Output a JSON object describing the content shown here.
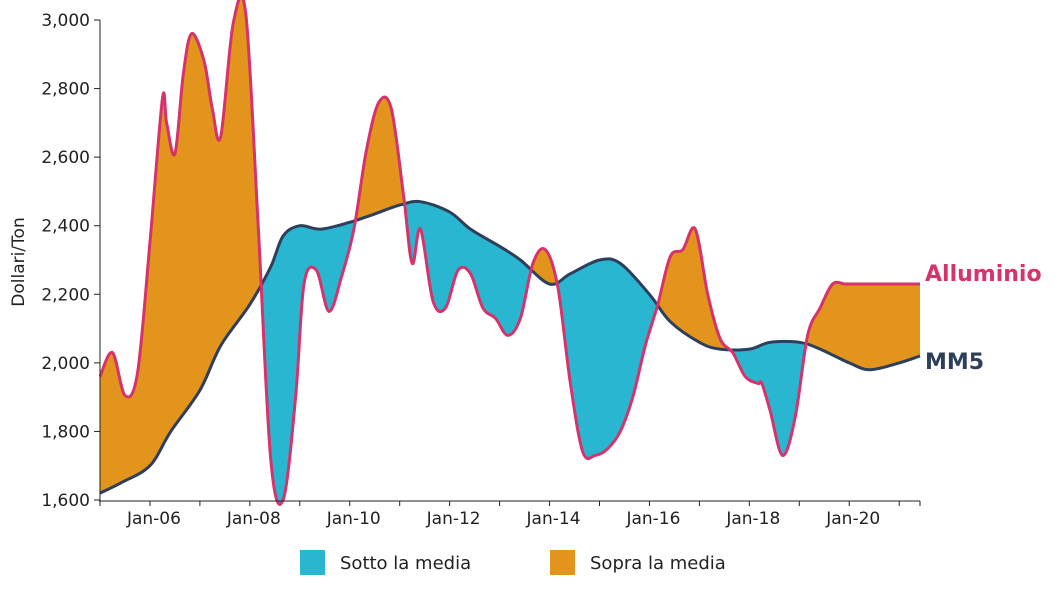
{
  "chart_data": {
    "type": "area",
    "title": "",
    "xlabel": "",
    "ylabel": "Dollari/Ton",
    "ylim": [
      1600,
      3000
    ],
    "xlim": [
      "2005-01",
      "2021-06"
    ],
    "y_ticks": [
      1600,
      1800,
      2000,
      2200,
      2400,
      2600,
      2800,
      3000
    ],
    "y_tick_labels": [
      "1,600",
      "1,800",
      "2,000",
      "2,200",
      "2,400",
      "2,600",
      "2,800",
      "3,000"
    ],
    "x_ticks": [
      "2006-01",
      "2008-01",
      "2010-01",
      "2012-01",
      "2014-01",
      "2016-01",
      "2018-01",
      "2020-01"
    ],
    "x_tick_labels": [
      "Jan-06",
      "Jan-08",
      "Jan-10",
      "Jan-12",
      "Jan-14",
      "Jan-16",
      "Jan-18",
      "Jan-20"
    ],
    "grid": false,
    "legend_position": "bottom",
    "colors": {
      "aluminium": "#d6336c",
      "ma5": "#2e3f5c",
      "below": "#29b6d0",
      "above": "#e2941c"
    },
    "legend": [
      {
        "label": "Sotto la media",
        "color": "#29b6d0"
      },
      {
        "label": "Sopra la media",
        "color": "#e2941c"
      }
    ],
    "series": [
      {
        "name": "Alluminio",
        "x": [
          "2005-01",
          "2005-04",
          "2005-07",
          "2005-10",
          "2006-01",
          "2006-04",
          "2006-05",
          "2006-07",
          "2006-09",
          "2006-11",
          "2007-02",
          "2007-04",
          "2007-06",
          "2007-09",
          "2007-12",
          "2008-03",
          "2008-06",
          "2008-09",
          "2008-12",
          "2009-02",
          "2009-05",
          "2009-08",
          "2009-11",
          "2010-02",
          "2010-05",
          "2010-08",
          "2010-11",
          "2011-02",
          "2011-04",
          "2011-06",
          "2011-09",
          "2011-12",
          "2012-03",
          "2012-06",
          "2012-09",
          "2012-12",
          "2013-03",
          "2013-06",
          "2013-09",
          "2013-12",
          "2014-03",
          "2014-06",
          "2014-09",
          "2014-12",
          "2015-03",
          "2015-06",
          "2015-09",
          "2015-12",
          "2016-03",
          "2016-06",
          "2016-09",
          "2016-12",
          "2017-03",
          "2017-06",
          "2017-09",
          "2017-12",
          "2018-03",
          "2018-04",
          "2018-06",
          "2018-09",
          "2018-12",
          "2019-03",
          "2019-06",
          "2019-09",
          "2019-12",
          "2020-03",
          "2020-06",
          "2020-09",
          "2020-12",
          "2021-03",
          "2021-06"
        ],
        "values": [
          1960,
          2030,
          1905,
          1970,
          2350,
          2770,
          2700,
          2610,
          2840,
          2960,
          2880,
          2740,
          2660,
          2990,
          3020,
          2400,
          1720,
          1600,
          1900,
          2230,
          2270,
          2150,
          2250,
          2390,
          2620,
          2760,
          2740,
          2480,
          2290,
          2390,
          2180,
          2160,
          2270,
          2260,
          2160,
          2130,
          2080,
          2130,
          2290,
          2330,
          2220,
          1940,
          1740,
          1730,
          1750,
          1800,
          1900,
          2050,
          2170,
          2310,
          2330,
          2390,
          2200,
          2070,
          2030,
          1960,
          1940,
          1940,
          1860,
          1730,
          1840,
          2080,
          2160,
          2230,
          2230,
          2230,
          2230,
          2230,
          2230,
          2230,
          2230
        ]
      },
      {
        "name": "MM5",
        "x": [
          "2005-01",
          "2005-06",
          "2006-01",
          "2006-06",
          "2007-01",
          "2007-06",
          "2008-01",
          "2008-06",
          "2008-09",
          "2009-01",
          "2009-06",
          "2010-01",
          "2010-06",
          "2011-01",
          "2011-06",
          "2012-01",
          "2012-06",
          "2013-01",
          "2013-06",
          "2014-01",
          "2014-06",
          "2015-01",
          "2015-06",
          "2016-01",
          "2016-06",
          "2017-01",
          "2017-06",
          "2018-01",
          "2018-06",
          "2019-01",
          "2019-06",
          "2020-01",
          "2020-06",
          "2021-01",
          "2021-06"
        ],
        "values": [
          1620,
          1650,
          1700,
          1800,
          1920,
          2050,
          2170,
          2280,
          2370,
          2400,
          2390,
          2410,
          2430,
          2460,
          2470,
          2440,
          2390,
          2340,
          2300,
          2230,
          2260,
          2300,
          2290,
          2200,
          2120,
          2060,
          2040,
          2040,
          2060,
          2060,
          2040,
          2000,
          1980,
          2000,
          2020
        ]
      }
    ]
  }
}
